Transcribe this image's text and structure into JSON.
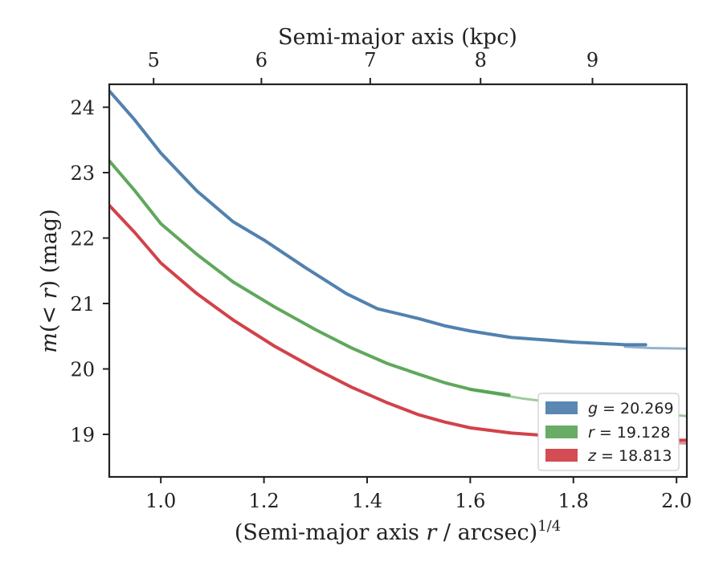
{
  "chart_data": {
    "type": "line",
    "xlim": [
      0.9,
      2.02
    ],
    "ylim": [
      24.35,
      18.35
    ],
    "y_inverted": true,
    "grid": false,
    "legend_position": "bottom-right",
    "bottom_axis": {
      "label_prefix": "(Semi-major axis ",
      "label_var": "r",
      "label_suffix": " / arcsec)",
      "label_sup": "1/4",
      "ticks": [
        1.0,
        1.2,
        1.4,
        1.6,
        1.8,
        2.0
      ],
      "tick_labels": [
        "1.0",
        "1.2",
        "1.4",
        "1.6",
        "1.8",
        "2.0"
      ]
    },
    "top_axis": {
      "label": "Semi-major axis (kpc)",
      "ticks": [
        5,
        6,
        7,
        8,
        9
      ],
      "tick_labels": [
        "5",
        "6",
        "7",
        "8",
        "9"
      ],
      "tick_positions_x": [
        0.986,
        1.195,
        1.406,
        1.62,
        1.837
      ]
    },
    "left_axis": {
      "label_m": "m",
      "label_mid": "(< ",
      "label_r": "r",
      "label_end": ") (mag)",
      "ticks": [
        19,
        20,
        21,
        22,
        23,
        24
      ],
      "tick_labels": [
        "19",
        "20",
        "21",
        "22",
        "23",
        "24"
      ]
    },
    "series": [
      {
        "name": "g = 20.269",
        "legend_var": "g",
        "legend_value": " = 20.269",
        "color": "#3e73a6",
        "x": [
          0.9,
          0.95,
          1.0,
          1.07,
          1.14,
          1.2,
          1.28,
          1.36,
          1.42,
          1.5,
          1.55,
          1.6,
          1.68,
          1.75,
          1.8,
          1.85,
          1.9,
          1.94
        ],
        "y": [
          24.25,
          23.8,
          23.3,
          22.72,
          22.25,
          21.97,
          21.55,
          21.15,
          20.92,
          20.77,
          20.66,
          20.58,
          20.48,
          20.44,
          20.41,
          20.39,
          20.37,
          20.37
        ],
        "extension_x": [
          1.9,
          1.95,
          2.02
        ],
        "extension_y": [
          20.34,
          20.32,
          20.31
        ]
      },
      {
        "name": "r = 19.128",
        "legend_var": "r",
        "legend_value": " = 19.128",
        "color": "#4e9e4a",
        "x": [
          0.9,
          0.95,
          1.0,
          1.07,
          1.14,
          1.22,
          1.3,
          1.37,
          1.44,
          1.5,
          1.55,
          1.6,
          1.675
        ],
        "y": [
          23.18,
          22.72,
          22.22,
          21.75,
          21.33,
          20.95,
          20.6,
          20.32,
          20.08,
          19.92,
          19.79,
          19.69,
          19.6
        ],
        "extension_x": [
          1.6,
          1.7,
          1.8,
          1.9,
          2.02
        ],
        "extension_y": [
          19.68,
          19.55,
          19.45,
          19.36,
          19.28
        ]
      },
      {
        "name": "z = 18.813",
        "legend_var": "z",
        "legend_value": " = 18.813",
        "color": "#cc2e36",
        "x": [
          0.9,
          0.95,
          1.0,
          1.07,
          1.14,
          1.22,
          1.3,
          1.37,
          1.44,
          1.5,
          1.55,
          1.6,
          1.68,
          1.75,
          1.8,
          1.85,
          1.9,
          2.02
        ],
        "y": [
          22.5,
          22.08,
          21.62,
          21.15,
          20.75,
          20.35,
          20.0,
          19.72,
          19.48,
          19.3,
          19.19,
          19.1,
          19.02,
          18.98,
          18.95,
          18.93,
          18.91,
          18.91
        ],
        "extension_x": [
          1.8,
          1.9,
          2.02
        ],
        "extension_y": [
          18.95,
          18.9,
          18.86
        ]
      }
    ]
  }
}
